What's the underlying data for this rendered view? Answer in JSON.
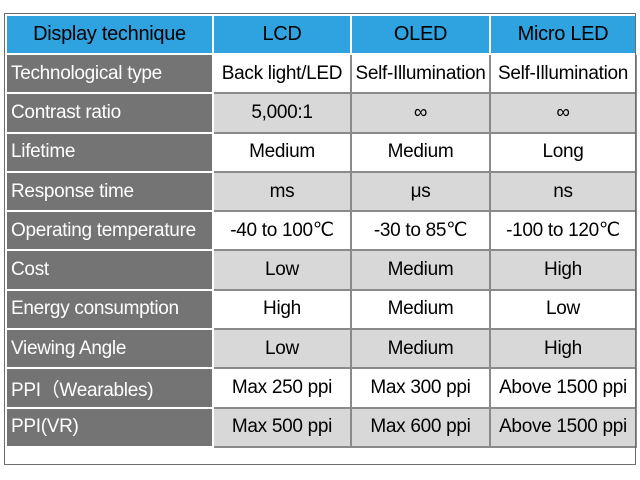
{
  "table": {
    "headers": [
      "Display technique",
      "LCD",
      "OLED",
      "Micro LED"
    ],
    "rows": [
      {
        "label": "Technological type",
        "values": [
          "Back light/LED",
          "Self-Illumination",
          "Self-Illumination"
        ]
      },
      {
        "label": "Contrast ratio",
        "values": [
          "5,000:1",
          "∞",
          "∞"
        ]
      },
      {
        "label": "Lifetime",
        "values": [
          "Medium",
          "Medium",
          "Long"
        ]
      },
      {
        "label": "Response time",
        "values": [
          "ms",
          "μs",
          "ns"
        ]
      },
      {
        "label": "Operating temperature",
        "values": [
          "-40 to 100℃",
          "-30 to 85℃",
          "-100 to 120℃"
        ]
      },
      {
        "label": "Cost",
        "values": [
          "Low",
          "Medium",
          "High"
        ]
      },
      {
        "label": "Energy consumption",
        "values": [
          "High",
          "Medium",
          "Low"
        ]
      },
      {
        "label": "Viewing Angle",
        "values": [
          "Low",
          "Medium",
          "High"
        ]
      },
      {
        "label": "PPI（Wearables)",
        "values": [
          "Max 250 ppi",
          "Max 300 ppi",
          "Above 1500 ppi"
        ]
      },
      {
        "label": "PPI(VR)",
        "values": [
          "Max 500 ppi",
          "Max 600 ppi",
          "Above 1500 ppi"
        ]
      }
    ]
  },
  "colors": {
    "header_bg": "#2ea3e0",
    "rowhead_bg": "#747474",
    "alt_row_bg": "#d8d8d8"
  }
}
